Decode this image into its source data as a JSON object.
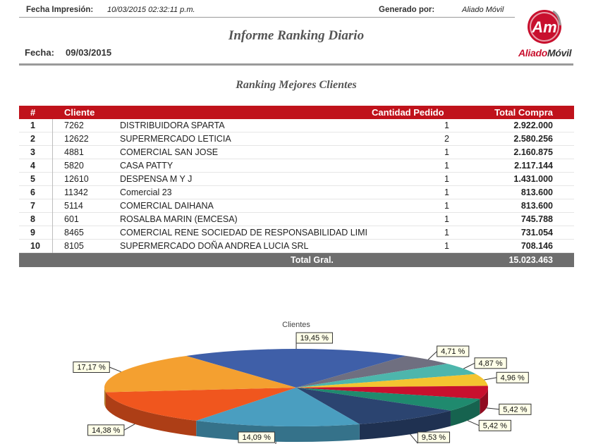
{
  "header": {
    "print_label": "Fecha Impresión:",
    "print_value": "10/03/2015 02:32:11 p.m.",
    "generated_label": "Generado por:",
    "generated_value": "Aliado Móvil",
    "title": "Informe Ranking Diario",
    "date_label": "Fecha:",
    "date_value": "09/03/2015",
    "logo_mark": "Am",
    "logo_text_a": "Aliado",
    "logo_text_b": "Móvil",
    "brand_color": "#c8102e"
  },
  "section_title": "Ranking Mejores Clientes",
  "table": {
    "columns": {
      "num": "#",
      "client": "Cliente",
      "qty": "Cantidad Pedido",
      "total": "Total Compra"
    },
    "rows": [
      {
        "num": "1",
        "code": "7262",
        "name": "DISTRIBUIDORA SPARTA",
        "qty": "1",
        "total": "2.922.000"
      },
      {
        "num": "2",
        "code": "12622",
        "name": "SUPERMERCADO LETICIA",
        "qty": "2",
        "total": "2.580.256"
      },
      {
        "num": "3",
        "code": "4881",
        "name": "COMERCIAL SAN JOSE",
        "qty": "1",
        "total": "2.160.875"
      },
      {
        "num": "4",
        "code": "5820",
        "name": "CASA PATTY",
        "qty": "1",
        "total": "2.117.144"
      },
      {
        "num": "5",
        "code": "12610",
        "name": "DESPENSA M Y J",
        "qty": "1",
        "total": "1.431.000"
      },
      {
        "num": "6",
        "code": "11342",
        "name": "Comercial 23",
        "qty": "1",
        "total": "813.600"
      },
      {
        "num": "7",
        "code": "5114",
        "name": "COMERCIAL DAIHANA",
        "qty": "1",
        "total": "813.600"
      },
      {
        "num": "8",
        "code": "601",
        "name": "ROSALBA MARIN (EMCESA)",
        "qty": "1",
        "total": "745.788"
      },
      {
        "num": "9",
        "code": "8465",
        "name": "COMERCIAL RENE SOCIEDAD DE RESPONSABILIDAD LIMI",
        "qty": "1",
        "total": "731.054"
      },
      {
        "num": "10",
        "code": "8105",
        "name": "SUPERMERCADO DOÑA ANDREA LUCIA SRL",
        "qty": "1",
        "total": "708.146"
      }
    ],
    "footer_label": "Total Gral.",
    "footer_total": "15.023.463",
    "header_color": "#c0121b",
    "footer_color": "#6e6e6e"
  },
  "chart_data": {
    "type": "pie",
    "title": "Clientes",
    "slices": [
      {
        "label": "19,45 %",
        "value": 19.45,
        "color": "#3f5fa8"
      },
      {
        "label": "4,71 %",
        "value": 4.71,
        "color": "#6f6f80"
      },
      {
        "label": "4,87 %",
        "value": 4.87,
        "color": "#4db6ac"
      },
      {
        "label": "4,96 %",
        "value": 4.96,
        "color": "#f4c430"
      },
      {
        "label": "5,42 %",
        "value": 5.42,
        "color": "#c8102e"
      },
      {
        "label": "5,42 %",
        "value": 5.42,
        "color": "#1f8a6e"
      },
      {
        "label": "9,53 %",
        "value": 9.53,
        "color": "#2b4470"
      },
      {
        "label": "14,09 %",
        "value": 14.09,
        "color": "#4a9ec0"
      },
      {
        "label": "14,38 %",
        "value": 14.38,
        "color": "#f0561e"
      },
      {
        "label": "17,17 %",
        "value": 17.17,
        "color": "#f4a030"
      }
    ]
  }
}
